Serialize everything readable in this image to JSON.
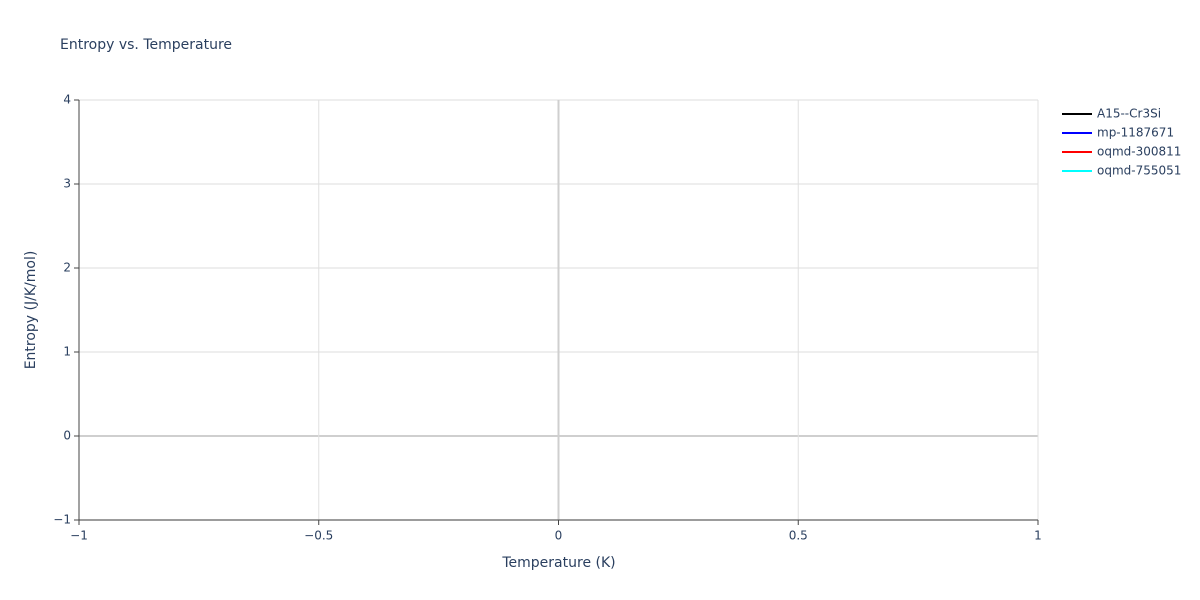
{
  "chart_data": {
    "type": "line",
    "title": "Entropy vs. Temperature",
    "x_label": "Temperature (K)",
    "y_label": "Entropy (J/K/mol)",
    "x": [],
    "series": [
      {
        "name": "A15--Cr3Si",
        "color": "#000000",
        "values": []
      },
      {
        "name": "mp-1187671",
        "color": "#0000ff",
        "values": []
      },
      {
        "name": "oqmd-300811",
        "color": "#ff0000",
        "values": []
      },
      {
        "name": "oqmd-755051",
        "color": "#00ffff",
        "values": []
      }
    ],
    "xlim": [
      -1,
      1
    ],
    "xticks": [
      {
        "value": -1,
        "label": "−1"
      },
      {
        "value": -0.5,
        "label": "−0.5"
      },
      0,
      0.5,
      1
    ],
    "ylim": [
      -1,
      4
    ],
    "yticks": [
      {
        "value": -1,
        "label": "−1"
      },
      0,
      1,
      2,
      3,
      4
    ],
    "grid": true,
    "legend": "right"
  }
}
